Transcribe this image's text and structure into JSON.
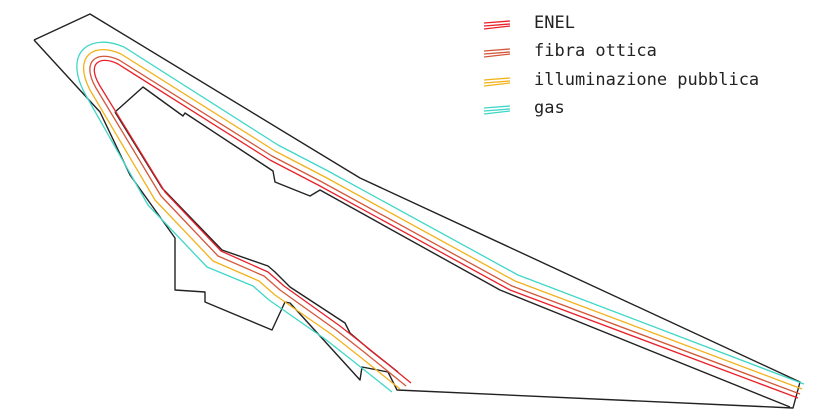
{
  "legend": {
    "items": [
      {
        "key": "enel",
        "label": "ENEL",
        "color": "#e8212a"
      },
      {
        "key": "fibra",
        "label": "fibra ottica",
        "color": "#d4573a"
      },
      {
        "key": "illum",
        "label": "illuminazione pubblica",
        "color": "#f2b21b"
      },
      {
        "key": "gas",
        "label": "gas",
        "color": "#3fd7c8"
      }
    ]
  },
  "colors": {
    "boundary": "#222222",
    "background": "#ffffff"
  }
}
